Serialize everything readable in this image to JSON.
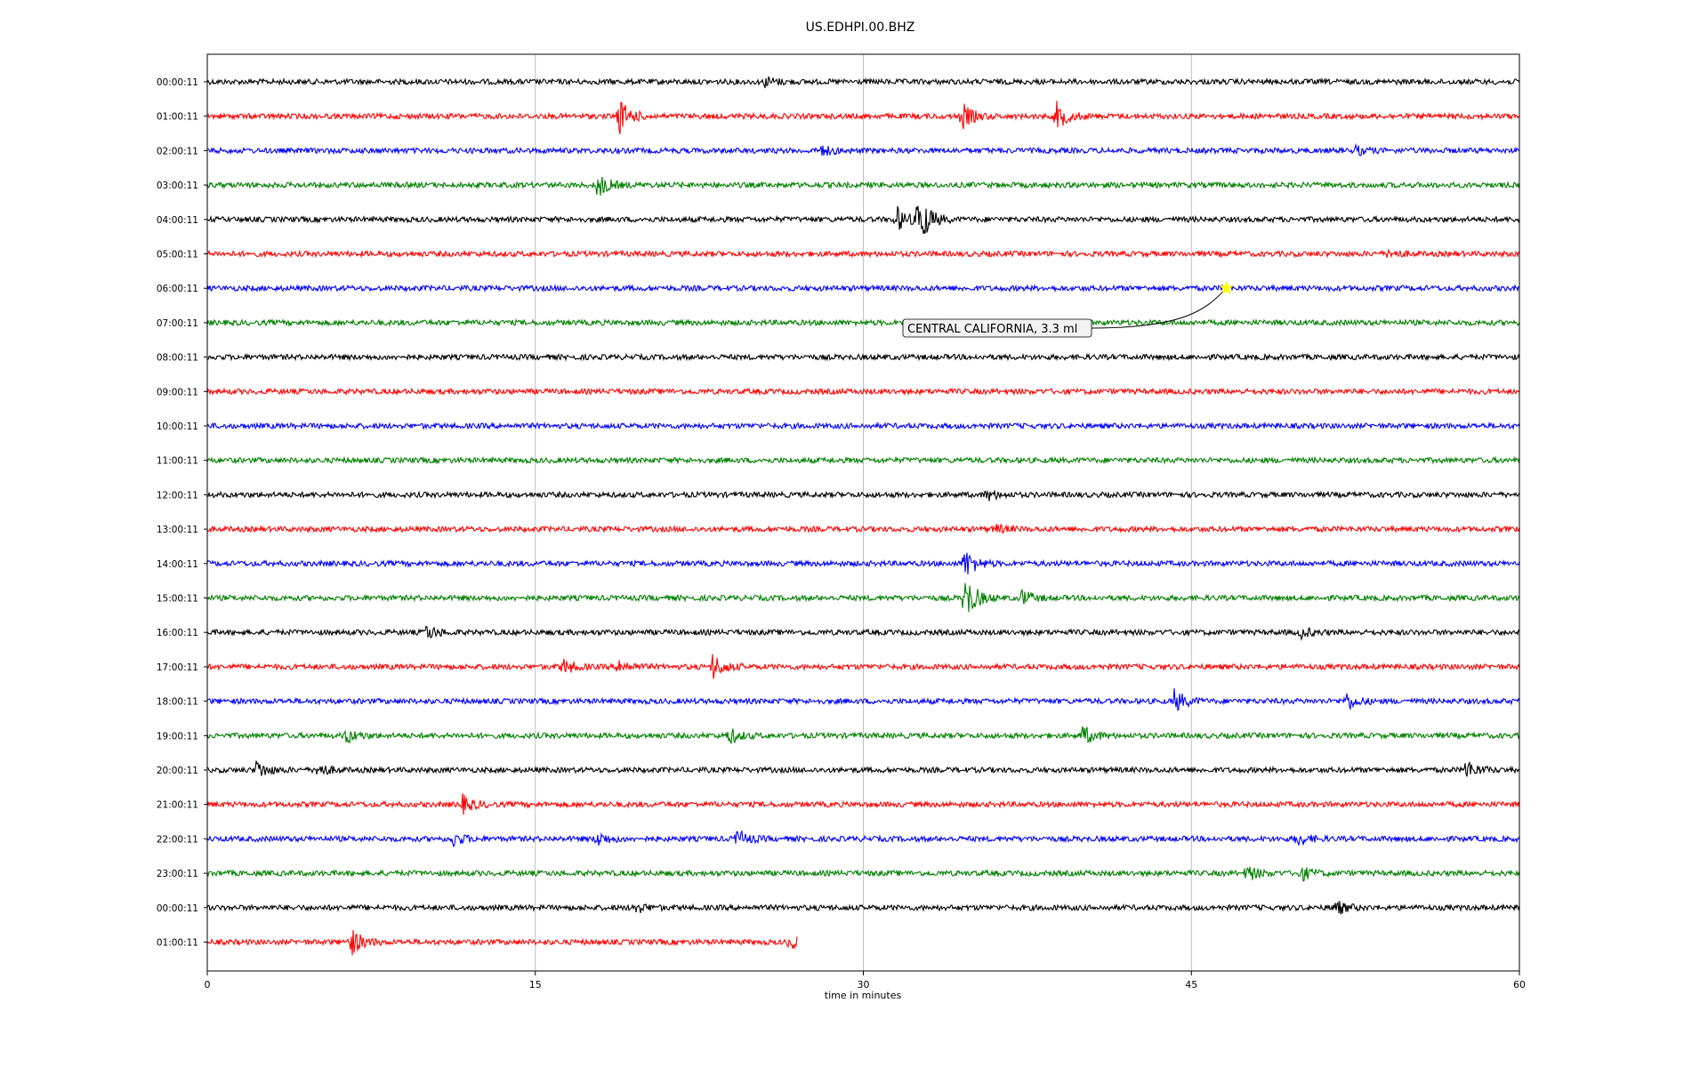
{
  "chart_data": {
    "type": "line",
    "title": "US.EDHPI.00.BHZ",
    "xlabel": "time in minutes",
    "ylabel": "",
    "xlim": [
      0,
      60
    ],
    "x_ticks": [
      0,
      15,
      30,
      45,
      60
    ],
    "grid": "vertical gridlines at each x tick",
    "series_colors": [
      "#000000",
      "#ff0000",
      "#0000ff",
      "#008000"
    ],
    "trace_end_minute": 27,
    "rows": [
      "00:00:11",
      "01:00:11",
      "02:00:11",
      "03:00:11",
      "04:00:11",
      "05:00:11",
      "06:00:11",
      "07:00:11",
      "08:00:11",
      "09:00:11",
      "10:00:11",
      "11:00:11",
      "12:00:11",
      "13:00:11",
      "14:00:11",
      "15:00:11",
      "16:00:11",
      "17:00:11",
      "18:00:11",
      "19:00:11",
      "20:00:11",
      "21:00:11",
      "22:00:11",
      "23:00:11",
      "00:00:11",
      "01:00:11"
    ],
    "events": [
      {
        "row": 0,
        "minute": 25.5,
        "amp": 0.35
      },
      {
        "row": 1,
        "minute": 18.8,
        "amp": 1.3
      },
      {
        "row": 1,
        "minute": 34.5,
        "amp": 0.9
      },
      {
        "row": 1,
        "minute": 38.8,
        "amp": 1.0
      },
      {
        "row": 2,
        "minute": 28.0,
        "amp": 0.4
      },
      {
        "row": 2,
        "minute": 52.5,
        "amp": 0.3
      },
      {
        "row": 3,
        "minute": 17.8,
        "amp": 0.9
      },
      {
        "row": 4,
        "minute": 32.5,
        "amp": 2.0
      },
      {
        "row": 4,
        "minute": 31.5,
        "amp": 0.9
      },
      {
        "row": 5,
        "minute": 54.0,
        "amp": 0.3
      },
      {
        "row": 12,
        "minute": 35.6,
        "amp": 0.4
      },
      {
        "row": 13,
        "minute": 36.0,
        "amp": 0.3
      },
      {
        "row": 14,
        "minute": 34.6,
        "amp": 1.1
      },
      {
        "row": 15,
        "minute": 34.6,
        "amp": 1.8
      },
      {
        "row": 15,
        "minute": 37.2,
        "amp": 0.6
      },
      {
        "row": 16,
        "minute": 10.0,
        "amp": 0.5
      },
      {
        "row": 16,
        "minute": 50.0,
        "amp": 0.35
      },
      {
        "row": 17,
        "minute": 16.2,
        "amp": 0.6
      },
      {
        "row": 17,
        "minute": 18.8,
        "amp": 0.5
      },
      {
        "row": 17,
        "minute": 23.1,
        "amp": 0.9
      },
      {
        "row": 18,
        "minute": 44.2,
        "amp": 0.8
      },
      {
        "row": 18,
        "minute": 52.0,
        "amp": 0.7
      },
      {
        "row": 19,
        "minute": 6.3,
        "amp": 0.5
      },
      {
        "row": 19,
        "minute": 23.8,
        "amp": 0.6
      },
      {
        "row": 19,
        "minute": 40.0,
        "amp": 0.7
      },
      {
        "row": 20,
        "minute": 2.2,
        "amp": 0.7
      },
      {
        "row": 20,
        "minute": 5.0,
        "amp": 0.5
      },
      {
        "row": 20,
        "minute": 57.5,
        "amp": 0.7
      },
      {
        "row": 21,
        "minute": 11.6,
        "amp": 0.7
      },
      {
        "row": 22,
        "minute": 11.2,
        "amp": 0.5
      },
      {
        "row": 22,
        "minute": 17.8,
        "amp": 0.5
      },
      {
        "row": 22,
        "minute": 24.2,
        "amp": 0.6
      },
      {
        "row": 22,
        "minute": 49.8,
        "amp": 0.5
      },
      {
        "row": 23,
        "minute": 47.5,
        "amp": 0.6
      },
      {
        "row": 23,
        "minute": 50.0,
        "amp": 0.5
      },
      {
        "row": 24,
        "minute": 19.5,
        "amp": 0.4
      },
      {
        "row": 24,
        "minute": 51.5,
        "amp": 0.6
      },
      {
        "row": 25,
        "minute": 6.5,
        "amp": 1.1
      },
      {
        "row": 25,
        "minute": 26.6,
        "amp": 0.5
      }
    ],
    "annotation": {
      "text": "CENTRAL CALIFORNIA, 3.3 ml",
      "row": 6,
      "minute": 46.6,
      "marker_color": "#ffff00"
    }
  }
}
